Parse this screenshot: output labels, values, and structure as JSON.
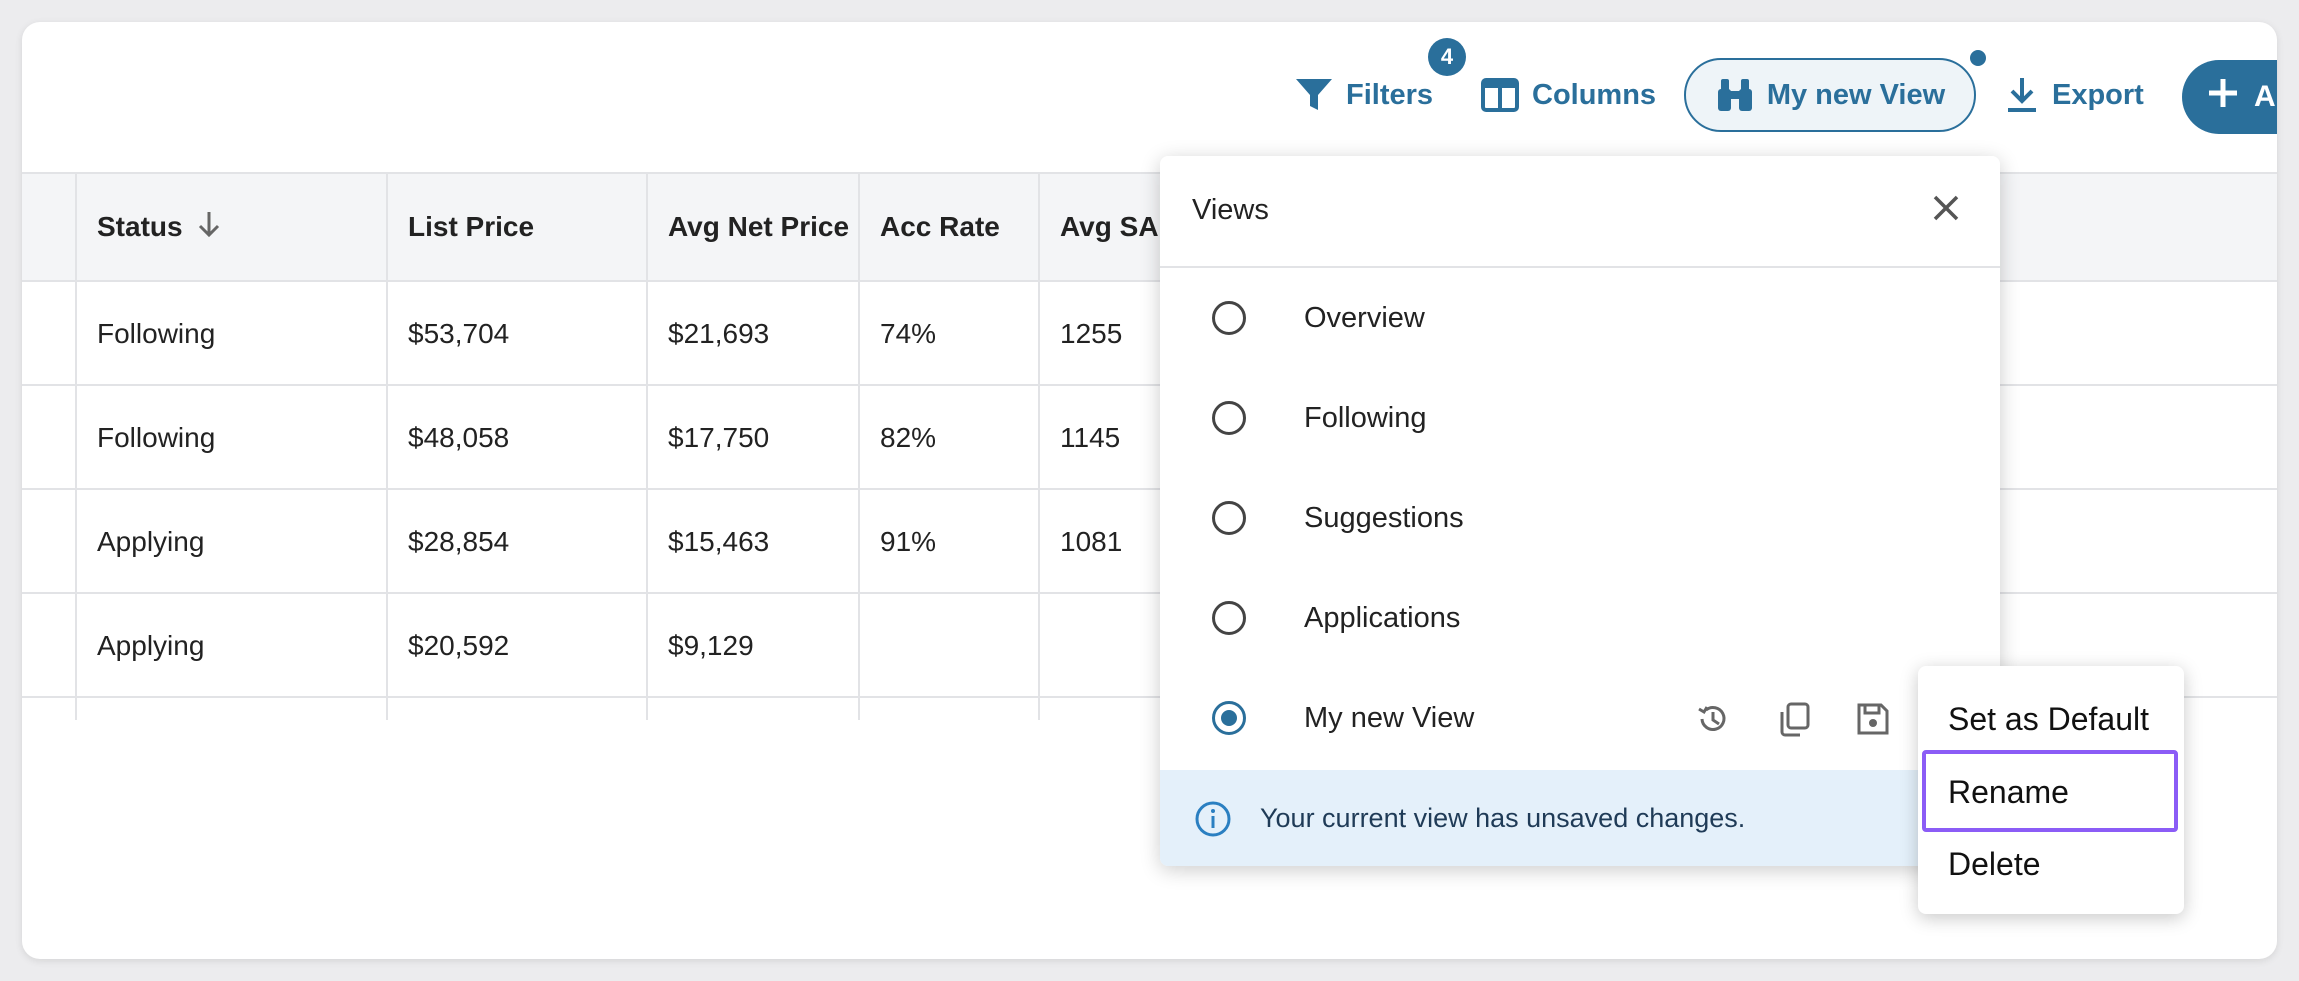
{
  "toolbar": {
    "filters_label": "Filters",
    "filters_count": "4",
    "columns_label": "Columns",
    "view_label": "My new View",
    "export_label": "Export",
    "add_label": "A"
  },
  "table": {
    "headers": [
      "Status",
      "List Price",
      "Avg Net Price",
      "Acc Rate",
      "Avg SA"
    ],
    "rows": [
      [
        "Following",
        "$53,704",
        "$21,693",
        "74%",
        "1255"
      ],
      [
        "Following",
        "$48,058",
        "$17,750",
        "82%",
        "1145"
      ],
      [
        "Applying",
        "$28,854",
        "$15,463",
        "91%",
        "1081"
      ],
      [
        "Applying",
        "$20,592",
        "$9,129",
        "",
        ""
      ]
    ]
  },
  "views_panel": {
    "title": "Views",
    "options": [
      "Overview",
      "Following",
      "Suggestions",
      "Applications",
      "My new View"
    ],
    "selected": "My new View",
    "notice": "Your current view has unsaved changes."
  },
  "context_menu": {
    "items": [
      "Set as Default",
      "Rename",
      "Delete"
    ],
    "highlighted": "Rename"
  },
  "colors": {
    "accent": "#2a6f9b",
    "highlight": "#8b5cf6",
    "info_bg": "#e4f0fa"
  },
  "icons": [
    "filter-icon",
    "columns-icon",
    "binoculars-icon",
    "download-icon",
    "plus-icon",
    "sort-down-icon",
    "close-icon",
    "history-icon",
    "copy-icon",
    "save-icon",
    "info-icon"
  ]
}
